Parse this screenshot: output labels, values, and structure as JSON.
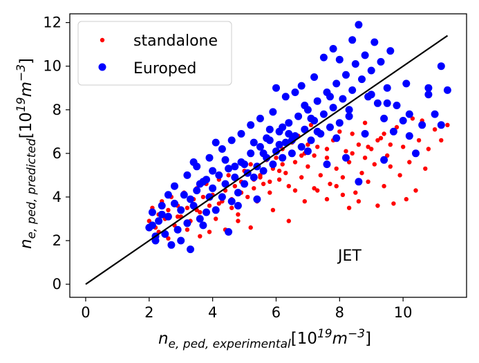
{
  "chart_data": {
    "type": "scatter",
    "title": "",
    "xlabel": {
      "base": "n",
      "sub": "e, ped, experimental",
      "unit_open": "[10",
      "unit_exp": "19",
      "unit_mid": "m",
      "unit_exp2": "−3",
      "unit_close": "]"
    },
    "ylabel": {
      "base": "n",
      "sub": "e, ped, predicted",
      "unit_open": "[10",
      "unit_exp": "19",
      "unit_mid": "m",
      "unit_exp2": "−3",
      "unit_close": "]"
    },
    "xlim": [
      -0.5,
      12.0
    ],
    "ylim": [
      -0.6,
      12.4
    ],
    "xticks": [
      0,
      2,
      4,
      6,
      8,
      10
    ],
    "yticks": [
      0,
      2,
      4,
      6,
      8,
      10,
      12
    ],
    "grid": false,
    "legend_position": "top-left",
    "annotation": "JET",
    "reference_line": {
      "x": [
        0,
        11.4
      ],
      "y": [
        0,
        11.4
      ],
      "color": "#000000"
    },
    "series": [
      {
        "name": "standalone",
        "color": "#ff0000",
        "marker_size": "small",
        "points": [
          [
            2.0,
            2.9
          ],
          [
            2.1,
            3.5
          ],
          [
            2.2,
            2.6
          ],
          [
            2.3,
            3.2
          ],
          [
            2.4,
            3.8
          ],
          [
            2.5,
            3.0
          ],
          [
            2.6,
            3.4
          ],
          [
            2.7,
            4.0
          ],
          [
            2.8,
            2.7
          ],
          [
            2.9,
            3.6
          ],
          [
            3.0,
            3.1
          ],
          [
            3.1,
            4.2
          ],
          [
            3.2,
            3.5
          ],
          [
            3.3,
            2.9
          ],
          [
            3.4,
            3.9
          ],
          [
            3.5,
            4.4
          ],
          [
            3.6,
            3.3
          ],
          [
            3.7,
            4.0
          ],
          [
            3.8,
            4.6
          ],
          [
            3.9,
            3.6
          ],
          [
            4.0,
            4.1
          ],
          [
            4.1,
            3.0
          ],
          [
            4.2,
            4.8
          ],
          [
            4.3,
            3.8
          ],
          [
            4.4,
            4.3
          ],
          [
            4.5,
            5.0
          ],
          [
            4.6,
            3.5
          ],
          [
            4.7,
            4.5
          ],
          [
            4.8,
            3.2
          ],
          [
            4.9,
            4.7
          ],
          [
            5.0,
            5.2
          ],
          [
            5.1,
            4.0
          ],
          [
            5.2,
            5.5
          ],
          [
            5.3,
            4.4
          ],
          [
            5.4,
            3.8
          ],
          [
            5.5,
            5.0
          ],
          [
            5.6,
            4.6
          ],
          [
            5.7,
            5.7
          ],
          [
            5.8,
            4.2
          ],
          [
            5.9,
            5.3
          ],
          [
            6.0,
            5.8
          ],
          [
            6.1,
            4.8
          ],
          [
            6.2,
            6.2
          ],
          [
            6.3,
            5.1
          ],
          [
            6.4,
            4.5
          ],
          [
            6.5,
            6.5
          ],
          [
            6.6,
            5.6
          ],
          [
            6.7,
            6.8
          ],
          [
            6.8,
            4.9
          ],
          [
            6.9,
            6.0
          ],
          [
            7.0,
            5.4
          ],
          [
            7.1,
            7.3
          ],
          [
            7.2,
            4.4
          ],
          [
            7.3,
            6.3
          ],
          [
            7.4,
            5.0
          ],
          [
            7.5,
            7.8
          ],
          [
            7.6,
            5.8
          ],
          [
            7.7,
            4.6
          ],
          [
            7.8,
            6.6
          ],
          [
            7.9,
            5.3
          ],
          [
            8.0,
            7.0
          ],
          [
            8.1,
            4.9
          ],
          [
            8.2,
            6.1
          ],
          [
            8.3,
            5.6
          ],
          [
            8.4,
            6.9
          ],
          [
            8.5,
            4.2
          ],
          [
            8.6,
            6.4
          ],
          [
            8.7,
            5.1
          ],
          [
            8.8,
            7.4
          ],
          [
            8.9,
            4.7
          ],
          [
            9.0,
            6.2
          ],
          [
            9.1,
            5.5
          ],
          [
            9.2,
            3.6
          ],
          [
            9.3,
            6.7
          ],
          [
            9.4,
            4.5
          ],
          [
            9.5,
            5.9
          ],
          [
            9.6,
            6.4
          ],
          [
            9.8,
            7.2
          ],
          [
            10.0,
            6.3
          ],
          [
            10.2,
            5.6
          ],
          [
            10.4,
            4.3
          ],
          [
            10.6,
            7.5
          ],
          [
            10.8,
            6.2
          ],
          [
            11.0,
            7.1
          ],
          [
            11.4,
            7.3
          ],
          [
            9.7,
            3.7
          ],
          [
            10.1,
            3.9
          ],
          [
            8.3,
            3.5
          ],
          [
            7.6,
            3.9
          ],
          [
            6.9,
            3.8
          ],
          [
            5.9,
            3.4
          ],
          [
            4.8,
            2.9
          ],
          [
            3.9,
            2.4
          ],
          [
            3.6,
            2.2
          ],
          [
            2.6,
            2.1
          ],
          [
            8.1,
            4.1
          ],
          [
            7.3,
            4.3
          ],
          [
            9.9,
            5.0
          ],
          [
            10.7,
            5.3
          ],
          [
            6.4,
            2.9
          ],
          [
            5.2,
            2.6
          ],
          [
            4.4,
            2.5
          ],
          [
            8.8,
            5.8
          ],
          [
            9.4,
            6.9
          ],
          [
            7.0,
            6.4
          ],
          [
            6.1,
            5.2
          ],
          [
            5.5,
            4.9
          ],
          [
            3.2,
            2.5
          ],
          [
            2.3,
            2.4
          ],
          [
            10.3,
            7.6
          ],
          [
            11.2,
            6.6
          ],
          [
            8.6,
            3.8
          ],
          [
            7.9,
            4.5
          ],
          [
            6.6,
            4.3
          ],
          [
            7.2,
            5.9
          ],
          [
            8.4,
            6.0
          ],
          [
            9.2,
            6.6
          ],
          [
            5.8,
            4.7
          ],
          [
            4.9,
            4.2
          ],
          [
            4.2,
            3.7
          ],
          [
            3.5,
            3.4
          ],
          [
            2.9,
            3.1
          ],
          [
            6.2,
            5.5
          ],
          [
            7.6,
            6.2
          ],
          [
            8.9,
            6.3
          ],
          [
            9.6,
            5.4
          ],
          [
            10.5,
            6.6
          ],
          [
            6.8,
            5.9
          ],
          [
            5.3,
            4.8
          ],
          [
            4.6,
            3.9
          ]
        ]
      },
      {
        "name": "Europed",
        "color": "#0000ff",
        "marker_size": "large",
        "points": [
          [
            2.0,
            2.6
          ],
          [
            2.1,
            3.3
          ],
          [
            2.2,
            2.0
          ],
          [
            2.3,
            2.9
          ],
          [
            2.4,
            3.6
          ],
          [
            2.5,
            2.3
          ],
          [
            2.6,
            3.1
          ],
          [
            2.7,
            1.8
          ],
          [
            2.8,
            3.7
          ],
          [
            2.9,
            2.5
          ],
          [
            3.0,
            3.4
          ],
          [
            3.1,
            4.1
          ],
          [
            3.2,
            2.8
          ],
          [
            3.3,
            1.6
          ],
          [
            3.4,
            3.6
          ],
          [
            3.5,
            4.3
          ],
          [
            3.6,
            3.0
          ],
          [
            3.7,
            4.7
          ],
          [
            3.8,
            3.3
          ],
          [
            3.9,
            4.0
          ],
          [
            4.0,
            4.4
          ],
          [
            4.1,
            3.4
          ],
          [
            4.2,
            5.0
          ],
          [
            4.3,
            4.0
          ],
          [
            4.4,
            4.6
          ],
          [
            4.5,
            5.3
          ],
          [
            4.6,
            3.8
          ],
          [
            4.7,
            4.9
          ],
          [
            4.8,
            4.2
          ],
          [
            4.9,
            5.6
          ],
          [
            5.0,
            4.6
          ],
          [
            5.1,
            5.1
          ],
          [
            5.2,
            6.0
          ],
          [
            5.3,
            4.9
          ],
          [
            5.4,
            5.4
          ],
          [
            5.5,
            6.3
          ],
          [
            5.6,
            5.2
          ],
          [
            5.7,
            5.8
          ],
          [
            5.8,
            6.6
          ],
          [
            5.9,
            5.5
          ],
          [
            6.0,
            6.1
          ],
          [
            6.1,
            7.0
          ],
          [
            6.2,
            5.8
          ],
          [
            6.3,
            6.5
          ],
          [
            6.4,
            7.4
          ],
          [
            6.5,
            6.0
          ],
          [
            6.6,
            6.8
          ],
          [
            6.7,
            7.7
          ],
          [
            6.8,
            6.3
          ],
          [
            6.9,
            7.1
          ],
          [
            7.0,
            8.0
          ],
          [
            7.1,
            6.6
          ],
          [
            7.2,
            7.5
          ],
          [
            7.3,
            8.4
          ],
          [
            7.4,
            6.9
          ],
          [
            7.5,
            7.8
          ],
          [
            7.6,
            8.8
          ],
          [
            7.7,
            7.2
          ],
          [
            7.8,
            8.1
          ],
          [
            7.9,
            9.2
          ],
          [
            8.0,
            7.4
          ],
          [
            8.1,
            8.5
          ],
          [
            8.2,
            9.6
          ],
          [
            8.3,
            7.7
          ],
          [
            8.4,
            8.9
          ],
          [
            8.5,
            10.1
          ],
          [
            8.6,
            11.9
          ],
          [
            8.7,
            9.4
          ],
          [
            8.8,
            10.5
          ],
          [
            8.9,
            8.6
          ],
          [
            9.0,
            9.8
          ],
          [
            9.1,
            11.1
          ],
          [
            9.2,
            8.3
          ],
          [
            9.3,
            10.2
          ],
          [
            9.4,
            7.6
          ],
          [
            9.5,
            9.0
          ],
          [
            9.6,
            10.7
          ],
          [
            9.7,
            7.0
          ],
          [
            9.8,
            8.2
          ],
          [
            10.0,
            7.5
          ],
          [
            10.2,
            6.8
          ],
          [
            10.4,
            6.0
          ],
          [
            10.6,
            7.3
          ],
          [
            10.8,
            8.7
          ],
          [
            11.0,
            7.8
          ],
          [
            11.2,
            10.0
          ],
          [
            11.4,
            8.9
          ],
          [
            11.2,
            7.3
          ],
          [
            10.8,
            9.0
          ],
          [
            10.2,
            7.8
          ],
          [
            8.4,
            11.2
          ],
          [
            8.0,
            10.3
          ],
          [
            7.5,
            10.4
          ],
          [
            7.2,
            9.5
          ],
          [
            7.8,
            10.8
          ],
          [
            6.8,
            9.1
          ],
          [
            6.3,
            8.6
          ],
          [
            5.9,
            7.9
          ],
          [
            5.5,
            7.6
          ],
          [
            5.2,
            7.3
          ],
          [
            4.9,
            6.9
          ],
          [
            4.6,
            6.6
          ],
          [
            4.3,
            6.2
          ],
          [
            3.9,
            5.8
          ],
          [
            3.5,
            5.4
          ],
          [
            3.2,
            5.0
          ],
          [
            2.8,
            4.5
          ],
          [
            4.1,
            6.5
          ],
          [
            3.4,
            5.6
          ],
          [
            2.6,
            4.1
          ],
          [
            6.0,
            9.0
          ],
          [
            6.6,
            8.8
          ],
          [
            7.0,
            6.1
          ],
          [
            7.6,
            5.5
          ],
          [
            8.2,
            5.8
          ],
          [
            8.8,
            6.9
          ],
          [
            9.4,
            5.7
          ],
          [
            8.6,
            4.7
          ],
          [
            7.9,
            6.7
          ],
          [
            5.4,
            3.9
          ],
          [
            4.8,
            3.6
          ],
          [
            4.5,
            2.4
          ],
          [
            3.7,
            2.7
          ],
          [
            3.0,
            2.0
          ],
          [
            2.2,
            2.2
          ],
          [
            2.1,
            2.7
          ],
          [
            2.4,
            3.2
          ],
          [
            5.0,
            5.5
          ],
          [
            5.7,
            6.7
          ],
          [
            6.2,
            7.2
          ],
          [
            6.5,
            6.6
          ],
          [
            3.6,
            4.6
          ],
          [
            4.0,
            5.2
          ],
          [
            4.4,
            5.7
          ],
          [
            5.3,
            6.5
          ],
          [
            5.8,
            7.1
          ],
          [
            6.1,
            6.4
          ],
          [
            6.9,
            8.2
          ],
          [
            7.3,
            7.0
          ],
          [
            7.7,
            8.6
          ],
          [
            8.3,
            8.0
          ],
          [
            9.0,
            8.7
          ],
          [
            9.5,
            8.3
          ],
          [
            10.1,
            9.2
          ],
          [
            3.3,
            3.9
          ],
          [
            3.8,
            4.8
          ],
          [
            4.7,
            5.4
          ],
          [
            5.6,
            6.0
          ],
          [
            6.4,
            6.9
          ],
          [
            7.1,
            7.6
          ]
        ]
      }
    ]
  }
}
